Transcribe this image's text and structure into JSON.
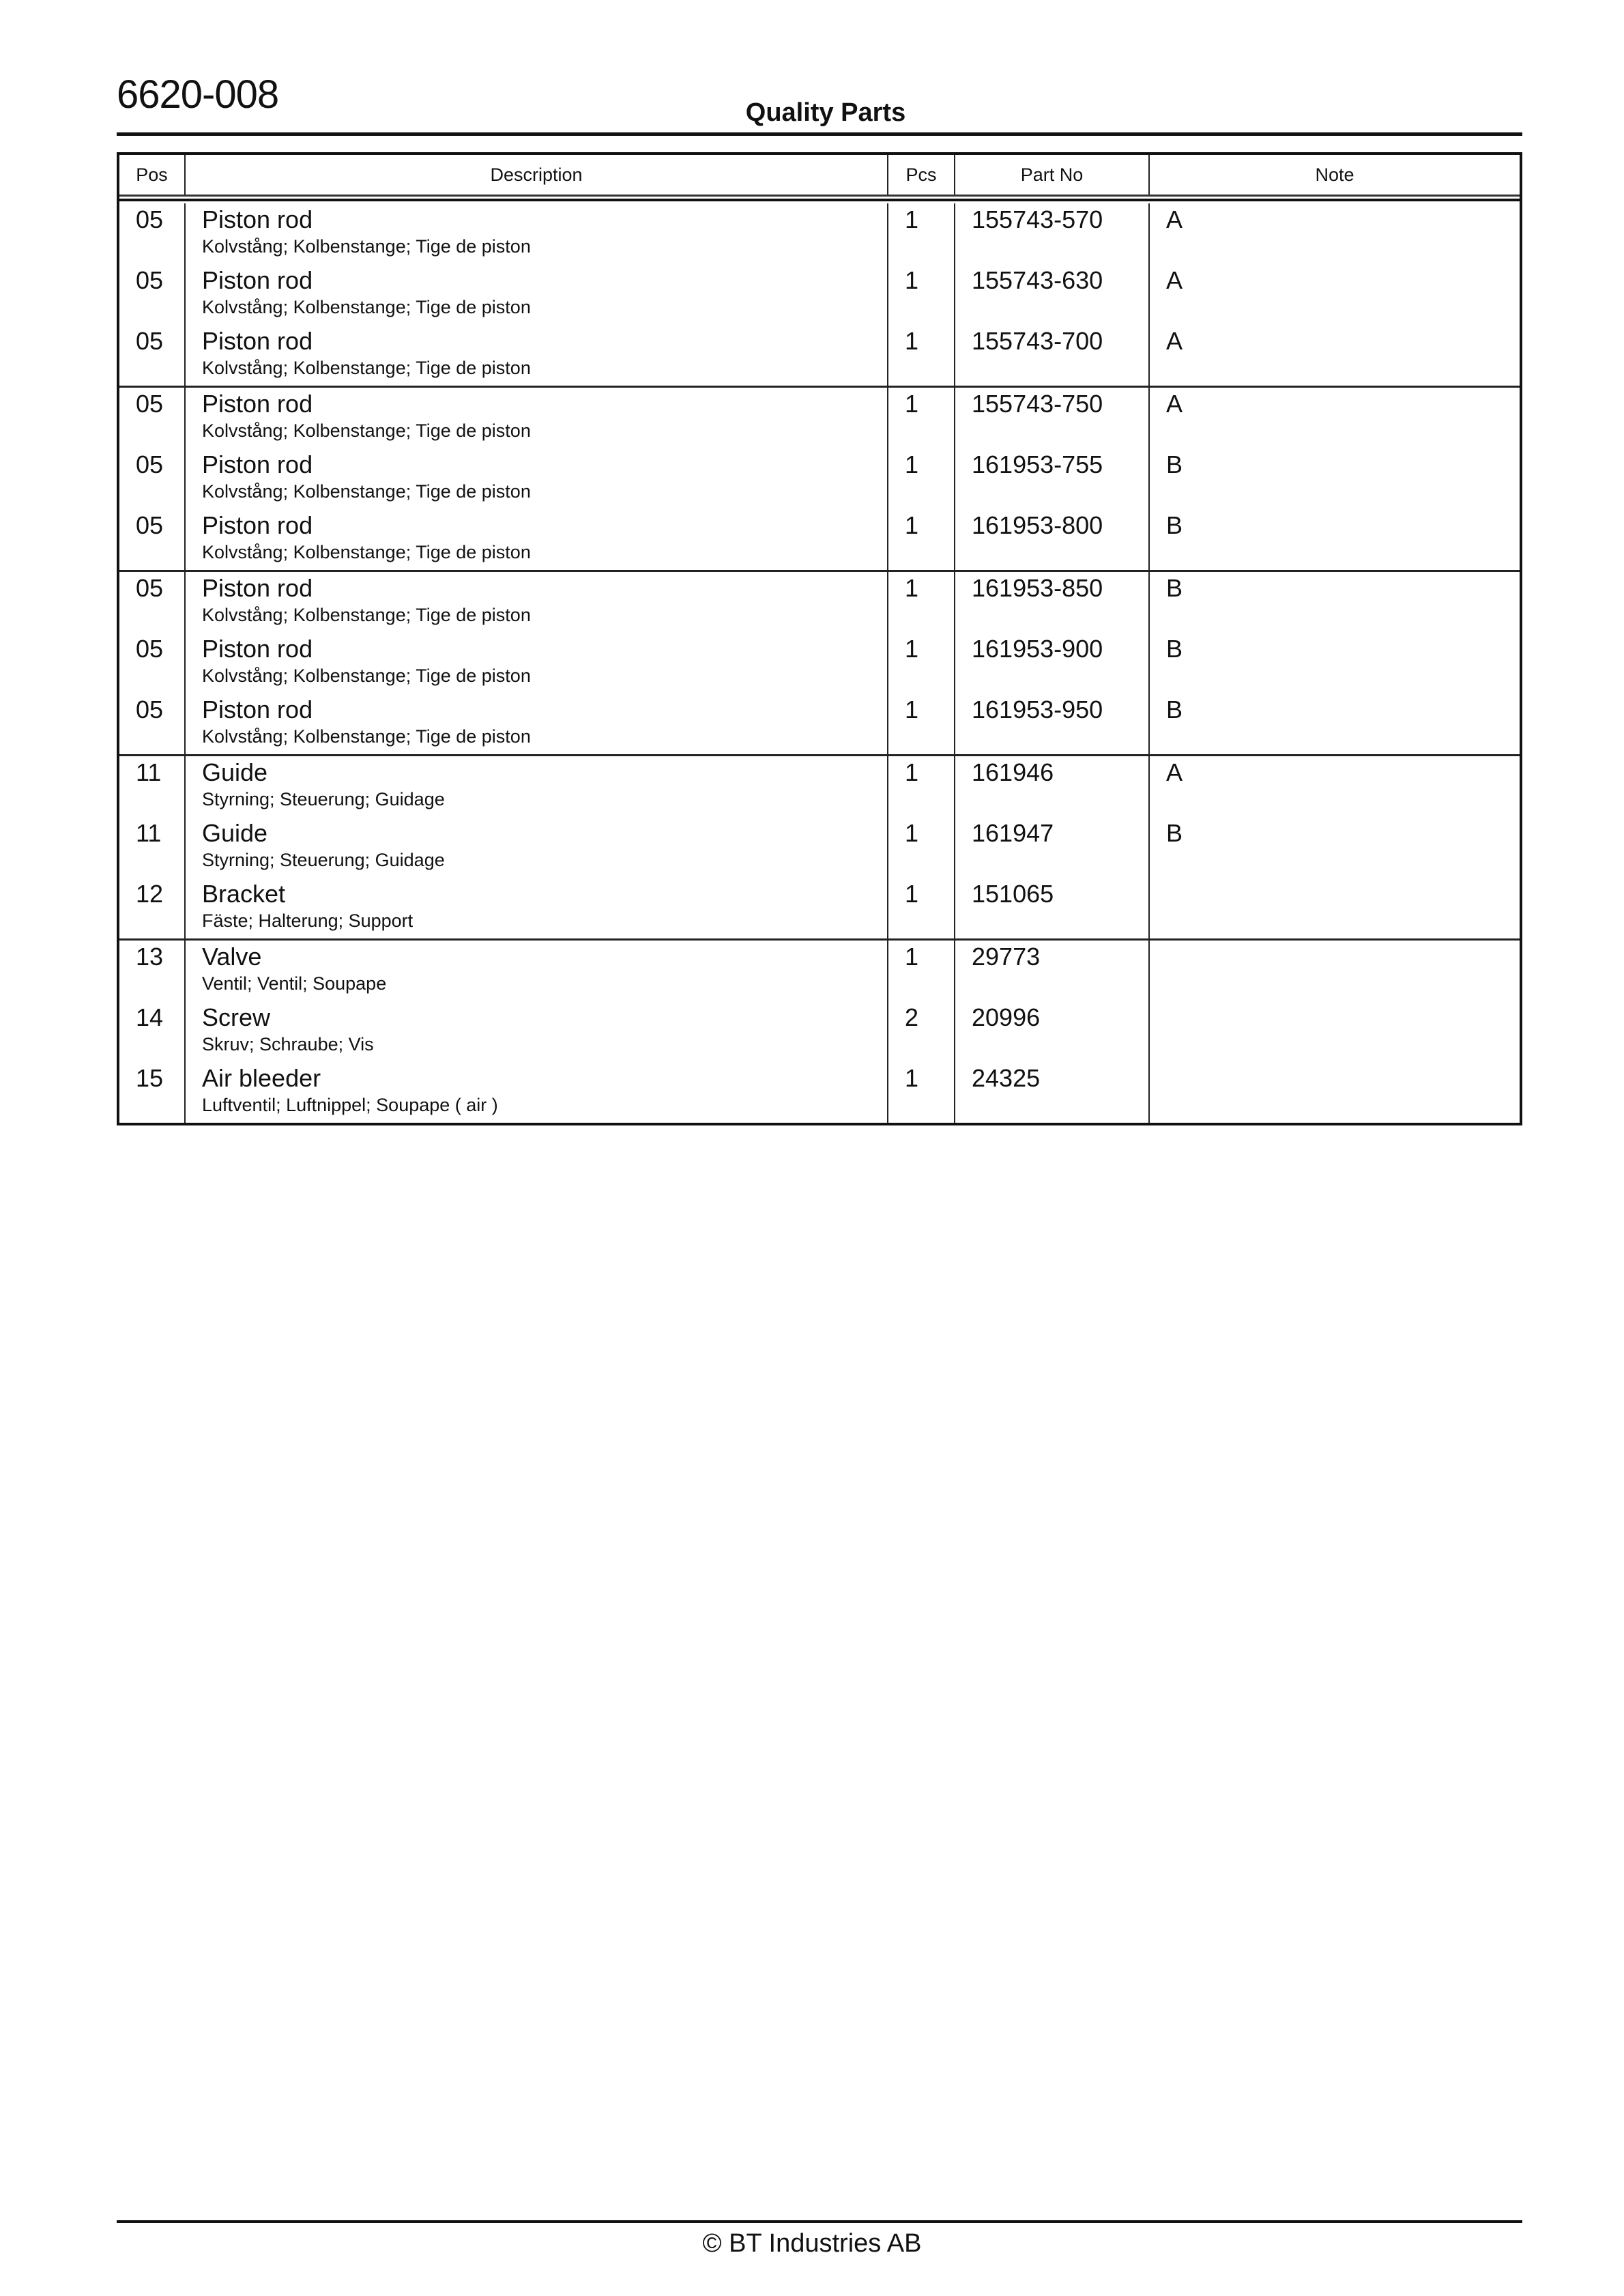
{
  "header": {
    "document_number": "6620-008",
    "title": "Quality Parts"
  },
  "table": {
    "columns": {
      "pos": "Pos",
      "description": "Description",
      "pcs": "Pcs",
      "part_no": "Part No",
      "note": "Note"
    },
    "groups": [
      [
        {
          "pos": "05",
          "name": "Piston rod",
          "translations": "Kolvstång; Kolbenstange; Tige de piston",
          "pcs": "1",
          "part_no": "155743-570",
          "note": "A"
        },
        {
          "pos": "05",
          "name": "Piston rod",
          "translations": "Kolvstång; Kolbenstange; Tige de piston",
          "pcs": "1",
          "part_no": "155743-630",
          "note": "A"
        },
        {
          "pos": "05",
          "name": "Piston rod",
          "translations": "Kolvstång; Kolbenstange; Tige de piston",
          "pcs": "1",
          "part_no": "155743-700",
          "note": "A"
        }
      ],
      [
        {
          "pos": "05",
          "name": "Piston rod",
          "translations": "Kolvstång; Kolbenstange; Tige de piston",
          "pcs": "1",
          "part_no": "155743-750",
          "note": "A"
        },
        {
          "pos": "05",
          "name": "Piston rod",
          "translations": "Kolvstång; Kolbenstange; Tige de piston",
          "pcs": "1",
          "part_no": "161953-755",
          "note": "B"
        },
        {
          "pos": "05",
          "name": "Piston rod",
          "translations": "Kolvstång; Kolbenstange; Tige de piston",
          "pcs": "1",
          "part_no": "161953-800",
          "note": "B"
        }
      ],
      [
        {
          "pos": "05",
          "name": "Piston rod",
          "translations": "Kolvstång; Kolbenstange; Tige de piston",
          "pcs": "1",
          "part_no": "161953-850",
          "note": "B"
        },
        {
          "pos": "05",
          "name": "Piston rod",
          "translations": "Kolvstång; Kolbenstange; Tige de piston",
          "pcs": "1",
          "part_no": "161953-900",
          "note": "B"
        },
        {
          "pos": "05",
          "name": "Piston rod",
          "translations": "Kolvstång; Kolbenstange; Tige de piston",
          "pcs": "1",
          "part_no": "161953-950",
          "note": "B"
        }
      ],
      [
        {
          "pos": "11",
          "name": "Guide",
          "translations": "Styrning; Steuerung; Guidage",
          "pcs": "1",
          "part_no": "161946",
          "note": "A"
        },
        {
          "pos": "11",
          "name": "Guide",
          "translations": "Styrning; Steuerung; Guidage",
          "pcs": "1",
          "part_no": "161947",
          "note": "B"
        },
        {
          "pos": "12",
          "name": "Bracket",
          "translations": "Fäste; Halterung; Support",
          "pcs": "1",
          "part_no": "151065",
          "note": ""
        }
      ],
      [
        {
          "pos": "13",
          "name": "Valve",
          "translations": "Ventil; Ventil; Soupape",
          "pcs": "1",
          "part_no": "29773",
          "note": ""
        },
        {
          "pos": "14",
          "name": "Screw",
          "translations": "Skruv; Schraube; Vis",
          "pcs": "2",
          "part_no": "20996",
          "note": ""
        },
        {
          "pos": "15",
          "name": "Air bleeder",
          "translations": "Luftventil; Luftnippel; Soupape ( air )",
          "pcs": "1",
          "part_no": "24325",
          "note": ""
        }
      ]
    ]
  },
  "footer": {
    "copyright": "© BT Industries AB"
  }
}
